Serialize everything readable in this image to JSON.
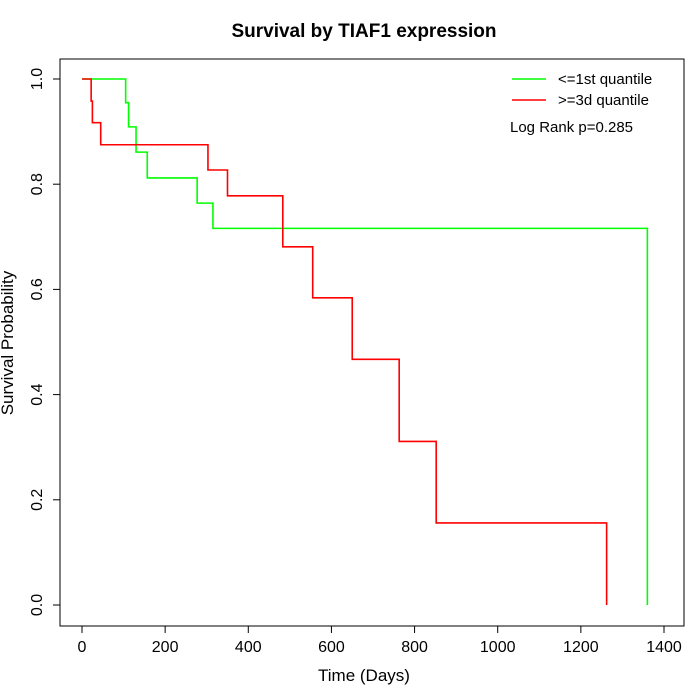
{
  "chart_data": {
    "type": "line",
    "step": true,
    "title": "Survival by TIAF1 expression",
    "xlabel": "Time (Days)",
    "ylabel": "Survival Probability",
    "xlim": [
      0,
      1400
    ],
    "ylim": [
      0,
      1
    ],
    "x_ticks": [
      0,
      200,
      400,
      600,
      800,
      1000,
      1200,
      1400
    ],
    "y_ticks": [
      0.0,
      0.2,
      0.4,
      0.6,
      0.8,
      1.0
    ],
    "x_tick_labels": [
      "0",
      "200",
      "400",
      "600",
      "800",
      "1000",
      "1200",
      "1400"
    ],
    "y_tick_labels": [
      "0.0",
      "0.2",
      "0.4",
      "0.6",
      "0.8",
      "1.0"
    ],
    "grid": false,
    "legend_position": "top-right",
    "annotation": "Log Rank p=0.285",
    "series": [
      {
        "name": "<=1st quantile",
        "color": "#00ff00",
        "x": [
          0,
          105,
          112,
          130,
          157,
          277,
          315,
          1360,
          1360
        ],
        "y": [
          1.0,
          0.955,
          0.909,
          0.861,
          0.812,
          0.764,
          0.716,
          0.716,
          0.0
        ]
      },
      {
        "name": ">=3d quantile",
        "color": "#ff0000",
        "x": [
          0,
          22,
          25,
          45,
          303,
          350,
          483,
          555,
          650,
          763,
          852,
          1262,
          1262
        ],
        "y": [
          1.0,
          0.958,
          0.917,
          0.875,
          0.827,
          0.778,
          0.681,
          0.584,
          0.467,
          0.311,
          0.156,
          0.156,
          0.0
        ]
      }
    ]
  }
}
